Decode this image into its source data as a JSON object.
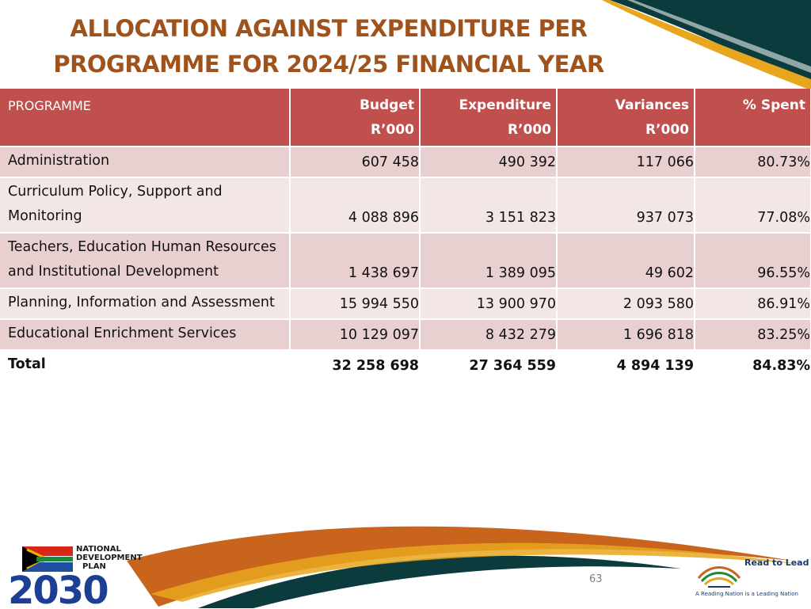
{
  "title": {
    "line1": "ALLOCATION AGAINST EXPENDITURE PER",
    "line2": "PROGRAMME FOR 2024/25 FINANCIAL YEAR"
  },
  "table": {
    "headers": {
      "programme": "PROGRAMME",
      "budget_l1": "Budget",
      "budget_l2": "R’000",
      "expenditure_l1": "Expenditure",
      "expenditure_l2": "R’000",
      "variances_l1": "Variances",
      "variances_l2": "R’000",
      "spent": "% Spent"
    },
    "rows": [
      {
        "programme": "Administration",
        "budget": "607 458",
        "expenditure": "490 392",
        "variance": "117 066",
        "spent": "80.73%"
      },
      {
        "programme": "Curriculum Policy, Support and Monitoring",
        "budget": "4 088 896",
        "expenditure": "3 151 823",
        "variance": "937 073",
        "spent": "77.08%"
      },
      {
        "programme": "Teachers, Education Human Resources and Institutional Development",
        "budget": "1 438 697",
        "expenditure": "1 389 095",
        "variance": "49 602",
        "spent": "96.55%"
      },
      {
        "programme": "Planning, Information and Assessment",
        "budget": "15 994 550",
        "expenditure": "13 900 970",
        "variance": "2 093 580",
        "spent": "86.91%"
      },
      {
        "programme": "Educational Enrichment Services",
        "budget": "10 129 097",
        "expenditure": "8 432 279",
        "variance": "1 696 818",
        "spent": "83.25%"
      }
    ],
    "total": {
      "programme": "Total",
      "budget": "32 258 698",
      "expenditure": "27 364 559",
      "variance": "4 894 139",
      "spent": "84.83%"
    }
  },
  "footer": {
    "page_number": "63",
    "ndp_logo": {
      "line1": "NATIONAL",
      "line2": "DEVELOPMENT",
      "line3": "PLAN",
      "year": "2030"
    },
    "read_to_lead": {
      "title": "Read to Lead",
      "tagline": "A Reading Nation is a Leading Nation"
    }
  },
  "colors": {
    "title": "#a0521c",
    "header_bg": "#c0504d",
    "row_odd": "#e8d0d0",
    "row_even": "#f3e6e6",
    "teal": "#0b3b3d",
    "gold": "#e7a61e",
    "orange": "#c9641c"
  },
  "icons": [
    "ndp-2030-logo",
    "read-to-lead-book-icon"
  ]
}
